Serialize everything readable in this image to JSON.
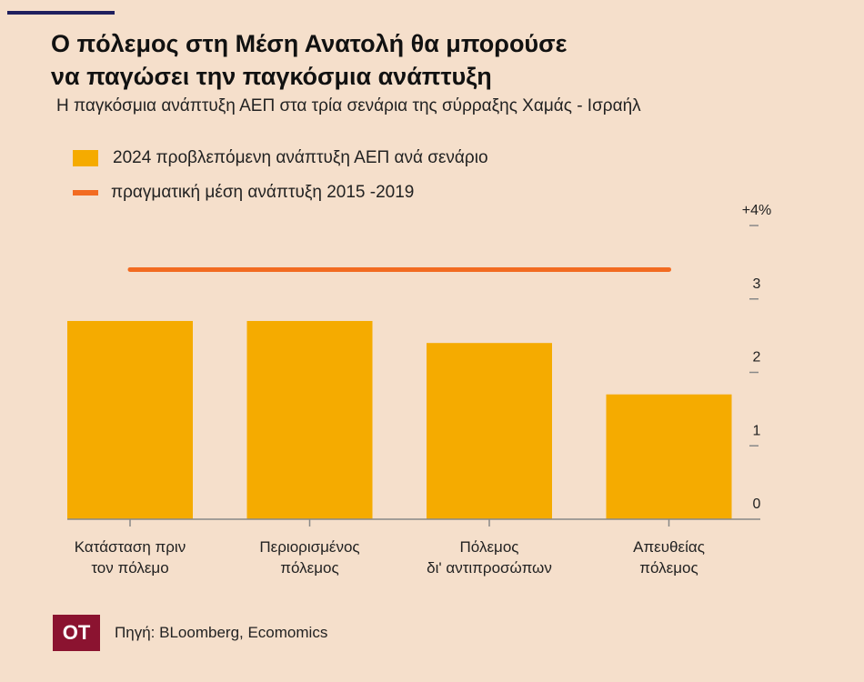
{
  "header": {
    "title_line1": "Ο πόλεμος στη Μέση Ανατολή θα μπορούσε",
    "title_line2": "να παγώσει την παγκόσμια ανάπτυξη",
    "subtitle": "Η παγκόσμια ανάπτυξη ΑΕΠ στα τρία σενάρια της σύρραξης Χαμάς - Ισραήλ"
  },
  "legend": {
    "bar_label": "2024 προβλεπόμενη ανάπτυξη ΑΕΠ ανά σενάριο",
    "line_label": "πραγματική μέση ανάπτυξη 2015 -2019"
  },
  "colors": {
    "bar": "#f5ab00",
    "line": "#f26b21",
    "axis": "#888888",
    "logo": "#8b1330"
  },
  "chart_data": {
    "type": "bar",
    "categories": [
      [
        "Κατάσταση πριν",
        "τον πόλεμο"
      ],
      [
        "Περιορισμένος",
        "πόλεμος"
      ],
      [
        "Πόλεμος",
        "δι' αντιπροσώπων"
      ],
      [
        "Απευθείας",
        "πόλεμος"
      ]
    ],
    "values": [
      2.7,
      2.7,
      2.4,
      1.7
    ],
    "reference_line": {
      "value": 3.4
    },
    "yticks": [
      {
        "value": 0,
        "label": "0"
      },
      {
        "value": 1,
        "label": "1"
      },
      {
        "value": 2,
        "label": "2"
      },
      {
        "value": 3,
        "label": "3"
      },
      {
        "value": 4,
        "label": "+4%"
      }
    ],
    "ylim": [
      0,
      4
    ],
    "y_axis_side": "right",
    "grid": false
  },
  "footer": {
    "logo_text": "OT",
    "source": "Πηγή: BLoomberg, Ecomomics"
  }
}
